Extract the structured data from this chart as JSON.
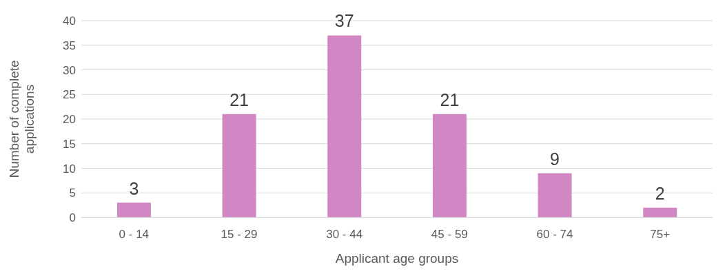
{
  "chart_data": {
    "type": "bar",
    "xlabel": "Applicant age groups",
    "ylabel": "Number of complete applications",
    "categories": [
      "0 - 14",
      "15 - 29",
      "30 - 44",
      "45 - 59",
      "60 - 74",
      "75+"
    ],
    "values": [
      3,
      21,
      37,
      21,
      9,
      2
    ],
    "color": "#d087c3",
    "ylim": [
      0,
      40
    ],
    "yticks": [
      0,
      5,
      10,
      15,
      20,
      25,
      30,
      35,
      40
    ],
    "grid": "y",
    "data_labels": true
  }
}
